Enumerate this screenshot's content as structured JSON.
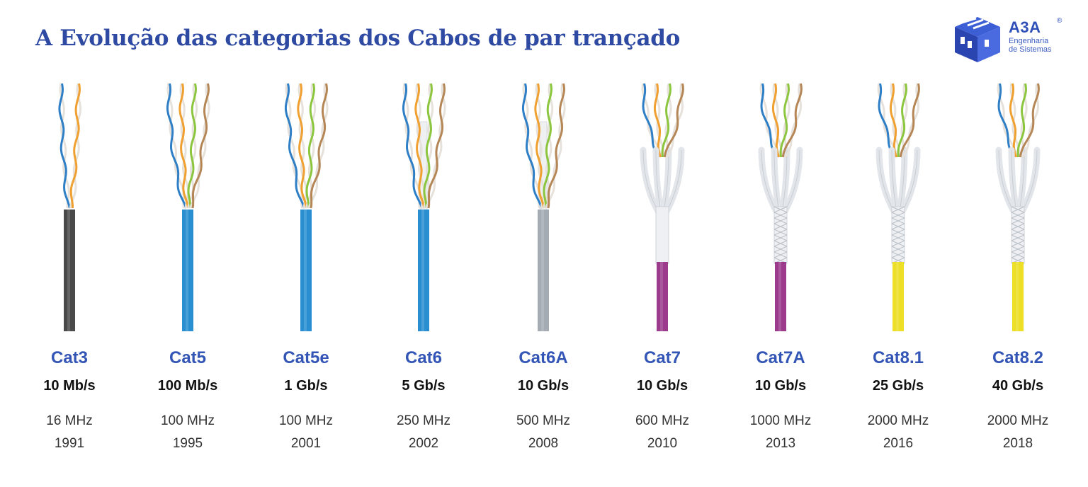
{
  "title": "A Evolução das categorias dos Cabos de par trançado",
  "logo": {
    "name": "A3A",
    "registered": "®",
    "subtitle_line1": "Engenharia",
    "subtitle_line2": "de Sistemas",
    "color": "#2e4fb8"
  },
  "colors": {
    "title": "#2f4aa3",
    "category": "#3355b5"
  },
  "cables": [
    {
      "category": "Cat3",
      "speed": "10 Mb/s",
      "frequency": "16 MHz",
      "year": "1991",
      "jacket_color": "#4a4a4a",
      "pairs": 2,
      "shielding": "none",
      "spine": false
    },
    {
      "category": "Cat5",
      "speed": "100 Mb/s",
      "frequency": "100 MHz",
      "year": "1995",
      "jacket_color": "#2a8fd0",
      "pairs": 4,
      "shielding": "none",
      "spine": false
    },
    {
      "category": "Cat5e",
      "speed": "1 Gb/s",
      "frequency": "100 MHz",
      "year": "2001",
      "jacket_color": "#2a8fd0",
      "pairs": 4,
      "shielding": "none",
      "spine": false
    },
    {
      "category": "Cat6",
      "speed": "5 Gb/s",
      "frequency": "250 MHz",
      "year": "2002",
      "jacket_color": "#2a8fd0",
      "pairs": 4,
      "shielding": "none",
      "spine": true
    },
    {
      "category": "Cat6A",
      "speed": "10 Gb/s",
      "frequency": "500 MHz",
      "year": "2008",
      "jacket_color": "#a4abb3",
      "pairs": 4,
      "shielding": "none",
      "spine": true
    },
    {
      "category": "Cat7",
      "speed": "10 Gb/s",
      "frequency": "600 MHz",
      "year": "2010",
      "jacket_color": "#9c3b8c",
      "pairs": 4,
      "shielding": "foil",
      "spine": false
    },
    {
      "category": "Cat7A",
      "speed": "10 Gb/s",
      "frequency": "1000 MHz",
      "year": "2013",
      "jacket_color": "#9c3b8c",
      "pairs": 4,
      "shielding": "braid",
      "spine": false
    },
    {
      "category": "Cat8.1",
      "speed": "25 Gb/s",
      "frequency": "2000 MHz",
      "year": "2016",
      "jacket_color": "#ecdf25",
      "pairs": 4,
      "shielding": "braid",
      "spine": false
    },
    {
      "category": "Cat8.2",
      "speed": "40 Gb/s",
      "frequency": "2000 MHz",
      "year": "2018",
      "jacket_color": "#ecdf25",
      "pairs": 4,
      "shielding": "braid",
      "spine": false
    }
  ],
  "pair_colors": [
    "#2f7fc6",
    "#f0a030",
    "#8cc63f",
    "#b58656"
  ]
}
